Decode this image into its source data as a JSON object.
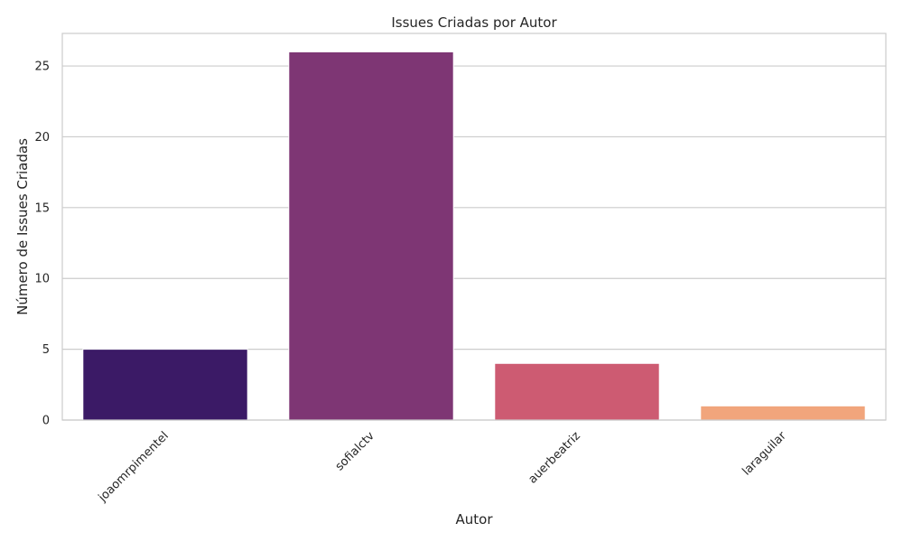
{
  "chart_data": {
    "type": "bar",
    "title": "Issues Criadas por Autor",
    "xlabel": "Autor",
    "ylabel": "Número de Issues Criadas",
    "categories": [
      "joaomrpimentel",
      "sofialctv",
      "auerbeatriz",
      "laraguilar"
    ],
    "values": [
      5,
      26,
      4,
      1
    ],
    "colors": [
      "#3b1a66",
      "#7e3674",
      "#cd5b72",
      "#f1a57c"
    ],
    "ylim": [
      0,
      27.3
    ],
    "yticks": [
      0,
      5,
      10,
      15,
      20,
      25
    ],
    "grid": "y",
    "legend": "none"
  }
}
